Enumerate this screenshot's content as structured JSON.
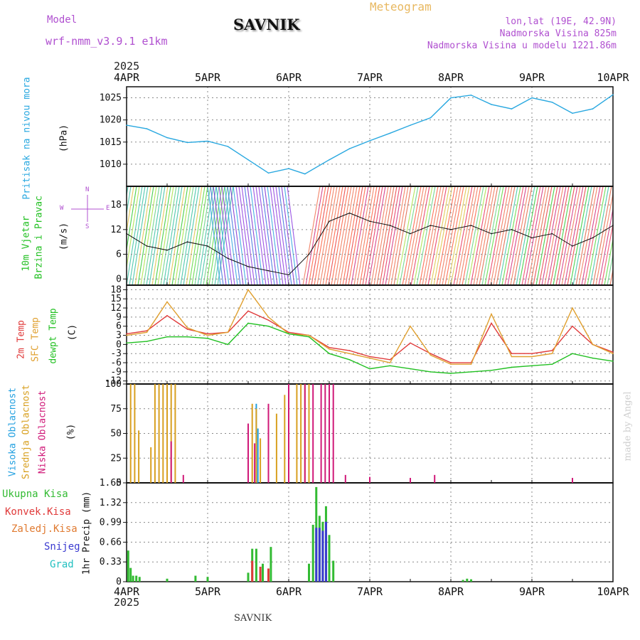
{
  "header": {
    "model_label": "Model",
    "model_name": "wrf-nmm_v3.9.1 e1km",
    "station": "SAVNIK",
    "product": "Meteogram",
    "coords": "lon,lat (19E, 42.9N)",
    "elevation": "Nadmorska Visina 825m",
    "model_elevation": "Nadmorska Visina u modelu 1221.86m",
    "year_top": "2025"
  },
  "footer": {
    "year_bottom": "2025",
    "station": "SAVNIK",
    "credit": "made by Angel"
  },
  "colors": {
    "pressure": "#29a8e0",
    "temp2m": "#e03a3a",
    "sfc": "#e0a030",
    "dew": "#22c022",
    "cloud_high": "#22a0e0",
    "cloud_mid": "#d8a020",
    "cloud_low": "#d01878",
    "precip_total": "#33bb33",
    "precip_conv": "#e03a3a",
    "precip_snow": "#3a3ad0",
    "precip_hail": "#22c0c0",
    "header_purple": "#b050d0",
    "header_orange": "#e8b860"
  },
  "x_ticks": [
    "4APR",
    "5APR",
    "6APR",
    "7APR",
    "8APR",
    "9APR",
    "10APR"
  ],
  "panel_labels": {
    "pressure": [
      "Pritisak na nivou mora",
      "(hPa)"
    ],
    "wind": [
      "10m Vjetar",
      "Brzina i Pravac",
      "(m/s)"
    ],
    "wind_compass": {
      "n": "N",
      "s": "S",
      "w": "W",
      "e": "E"
    },
    "temp": [
      "2m Temp",
      "SFC Temp",
      "dewpt Temp",
      "(C)"
    ],
    "cloud": [
      "Visoka Oblacnost",
      "Srednja Oblacnost",
      "Niska Oblacnost",
      "(%)"
    ],
    "precip_legend": [
      "Ukupna Kisa",
      "Konvek.Kisa",
      "Zaledj.Kisa",
      "Snijeg",
      "Grad"
    ],
    "precip_units": "1hr Precip (mm)"
  },
  "chart_data": [
    {
      "type": "line",
      "panel": "pressure",
      "ylabel": "Pritisak na nivou mora (hPa)",
      "yticks": [
        1010,
        1015,
        1020,
        1025
      ],
      "ylim": [
        1005,
        1027.5
      ],
      "x_days": [
        0,
        0.25,
        0.5,
        0.75,
        1.0,
        1.25,
        1.5,
        1.75,
        2.0,
        2.2,
        2.5,
        2.75,
        3.0,
        3.25,
        3.5,
        3.75,
        4.0,
        4.25,
        4.5,
        4.75,
        5.0,
        5.25,
        5.5,
        5.75,
        6.0
      ],
      "series": [
        {
          "name": "",
          "values": [
            1018.8,
            1018,
            1016,
            1014.9,
            1015.2,
            1014,
            1011,
            1008,
            1009,
            1007.8,
            1011,
            1013.5,
            1015.3,
            1017,
            1018.8,
            1020.5,
            1025,
            1025.6,
            1023.5,
            1022.5,
            1025,
            1024,
            1021.5,
            1022.5,
            1025.7
          ]
        }
      ],
      "grid": true
    },
    {
      "type": "line",
      "panel": "wind",
      "ylabel": "10m Vjetar Brzina i Pravac (m/s)",
      "yticks": [
        0,
        6,
        12,
        18
      ],
      "ylim": [
        -1.5,
        22.5
      ],
      "x_days": [
        0,
        0.25,
        0.5,
        0.75,
        1.0,
        1.25,
        1.5,
        1.75,
        2.0,
        2.25,
        2.5,
        2.75,
        3.0,
        3.25,
        3.5,
        3.75,
        4.0,
        4.25,
        4.5,
        4.75,
        5.0,
        5.25,
        5.5,
        5.75,
        6.0
      ],
      "series": [
        {
          "name": "",
          "values": [
            11,
            8,
            7,
            9,
            8,
            5,
            3,
            2,
            1,
            6,
            14,
            16,
            14,
            13,
            11,
            13,
            12,
            13,
            11,
            12,
            10,
            11,
            8,
            10,
            13
          ]
        }
      ],
      "grid": true
    },
    {
      "type": "line",
      "panel": "temperature",
      "ylabel": "(C)",
      "yticks": [
        -12,
        -9,
        -6,
        -3,
        0,
        3,
        6,
        9,
        12,
        15,
        18
      ],
      "ylim": [
        -13,
        19.5
      ],
      "x_days": [
        0,
        0.25,
        0.5,
        0.75,
        1.0,
        1.25,
        1.5,
        1.75,
        2.0,
        2.25,
        2.5,
        2.75,
        3.0,
        3.25,
        3.5,
        3.75,
        4.0,
        4.25,
        4.5,
        4.75,
        5.0,
        5.25,
        5.5,
        5.75,
        6.0
      ],
      "series": [
        {
          "name": "2m Temp",
          "values": [
            3.5,
            4.5,
            9.5,
            5,
            3.5,
            4,
            11,
            8,
            4,
            3,
            -1,
            -2,
            -4,
            -5,
            0.5,
            -3,
            -6,
            -6,
            7,
            -3,
            -3,
            -2,
            6,
            0,
            -2.5
          ]
        },
        {
          "name": "SFC Temp",
          "values": [
            3,
            4,
            14,
            5.5,
            3,
            4,
            18,
            9,
            3.5,
            3,
            -1.5,
            -3,
            -4.5,
            -6,
            6,
            -3.5,
            -6.5,
            -6.5,
            10,
            -4,
            -4,
            -3,
            12,
            0,
            -3
          ]
        },
        {
          "name": "dewpt Temp",
          "values": [
            0.5,
            1,
            2.5,
            2.5,
            2,
            0,
            7,
            6,
            3.5,
            2.5,
            -3,
            -5,
            -8,
            -7,
            -8,
            -9,
            -9.5,
            -9,
            -8.5,
            -7.5,
            -7,
            -6.5,
            -3,
            -4.5,
            -5.5
          ]
        }
      ],
      "grid": true
    },
    {
      "type": "bar",
      "panel": "cloud",
      "ylabel": "(%)",
      "yticks": [
        0,
        25,
        50,
        75,
        100
      ],
      "ylim": [
        0,
        100
      ],
      "series": [
        {
          "name": "Visoka Oblacnost",
          "x_days": [
            1.5,
            1.6,
            1.62
          ],
          "values": [
            32,
            80,
            55
          ]
        },
        {
          "name": "Srednja Oblacnost",
          "x_days": [
            0.05,
            0.1,
            0.15,
            0.3,
            0.35,
            0.4,
            0.45,
            0.5,
            0.55,
            0.6,
            1.55,
            1.6,
            1.65,
            1.85,
            1.95,
            2.0,
            2.1,
            2.15,
            2.2,
            2.25
          ],
          "values": [
            100,
            100,
            53,
            36,
            100,
            100,
            100,
            100,
            100,
            100,
            80,
            75,
            45,
            70,
            89,
            100,
            100,
            100,
            100,
            100
          ]
        },
        {
          "name": "Niska Oblacnost",
          "x_days": [
            0.55,
            0.7,
            1.5,
            1.58,
            1.75,
            2.0,
            2.2,
            2.3,
            2.4,
            2.45,
            2.5,
            2.55,
            2.7,
            3.0,
            3.5,
            3.8,
            5.5
          ],
          "values": [
            42,
            8,
            60,
            40,
            80,
            100,
            100,
            100,
            100,
            100,
            100,
            100,
            8,
            6,
            5,
            8,
            5
          ]
        }
      ],
      "grid": true
    },
    {
      "type": "bar",
      "panel": "precipitation",
      "ylabel": "1hr Precip (mm)",
      "yticks": [
        0,
        0.33,
        0.66,
        0.99,
        1.32,
        1.65
      ],
      "ylim": [
        0,
        1.65
      ],
      "series": [
        {
          "name": "Ukupna Kisa",
          "x_days": [
            0.02,
            0.05,
            0.08,
            0.12,
            0.16,
            0.5,
            0.85,
            1.0,
            1.5,
            1.55,
            1.6,
            1.68,
            1.78,
            2.25,
            2.3,
            2.34,
            2.38,
            2.42,
            2.46,
            2.5,
            2.55,
            4.15,
            4.2,
            4.25
          ],
          "values": [
            0.52,
            0.23,
            0.1,
            0.1,
            0.08,
            0.05,
            0.1,
            0.08,
            0.15,
            0.55,
            0.55,
            0.3,
            0.58,
            0.3,
            0.95,
            1.58,
            1.1,
            1.0,
            1.26,
            0.78,
            0.35,
            0.03,
            0.05,
            0.04
          ]
        },
        {
          "name": "Konvek.Kisa",
          "x_days": [
            1.55,
            1.65,
            1.75
          ],
          "values": [
            0.35,
            0.25,
            0.22
          ]
        },
        {
          "name": "Snijeg",
          "x_days": [
            2.34,
            2.38,
            2.42,
            2.46
          ],
          "values": [
            0.9,
            0.9,
            0.85,
            1.0
          ]
        }
      ],
      "grid": true
    }
  ]
}
